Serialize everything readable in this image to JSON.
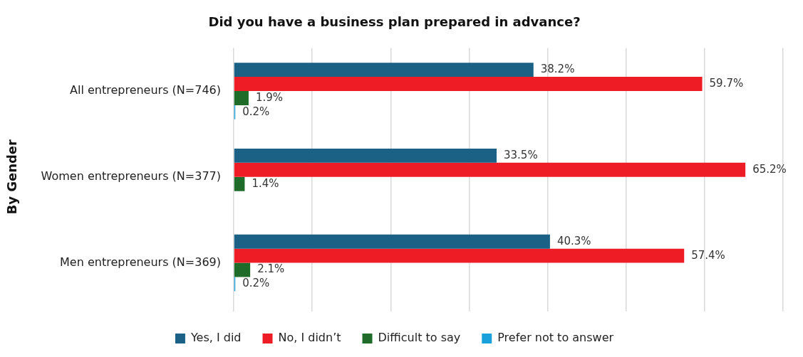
{
  "chart_data": {
    "type": "bar",
    "orientation": "horizontal",
    "title": "Did you have a business plan prepared in advance?",
    "ylabel": "By Gender",
    "categories": [
      "All entrepreneurs (N=746)",
      "Women entrepreneurs (N=377)",
      "Men entrepreneurs (N=369)"
    ],
    "series": [
      {
        "name": "Yes, I did",
        "color": "#1a6185",
        "values": [
          38.2,
          33.5,
          40.3
        ],
        "value_labels": [
          "38.2%",
          "33.5%",
          "40.3%"
        ]
      },
      {
        "name": "No, I didn’t",
        "color": "#ee1c25",
        "values": [
          59.7,
          65.2,
          57.4
        ],
        "value_labels": [
          "59.7%",
          "65.2%",
          "57.4%"
        ]
      },
      {
        "name": "Difficult to say",
        "color": "#1e6b2a",
        "values": [
          1.9,
          1.4,
          2.1
        ],
        "value_labels": [
          "1.9%",
          "1.4%",
          "2.1%"
        ]
      },
      {
        "name": "Prefer not to answer",
        "color": "#1aa0db",
        "values": [
          0.2,
          null,
          0.2
        ],
        "value_labels": [
          "0.2%",
          null,
          "0.2%"
        ]
      }
    ],
    "xlim": [
      0,
      70
    ],
    "xticks": [
      {
        "value": 0,
        "label": null
      },
      {
        "value": 10,
        "label": null
      },
      {
        "value": 20,
        "label": null
      },
      {
        "value": 30,
        "label": null
      },
      {
        "value": 40,
        "label": null
      },
      {
        "value": 50,
        "label": null
      },
      {
        "value": 60,
        "label": null
      },
      {
        "value": 70,
        "label": null
      }
    ],
    "tick_labels": "y",
    "grid": "x",
    "legend": "bottom"
  }
}
